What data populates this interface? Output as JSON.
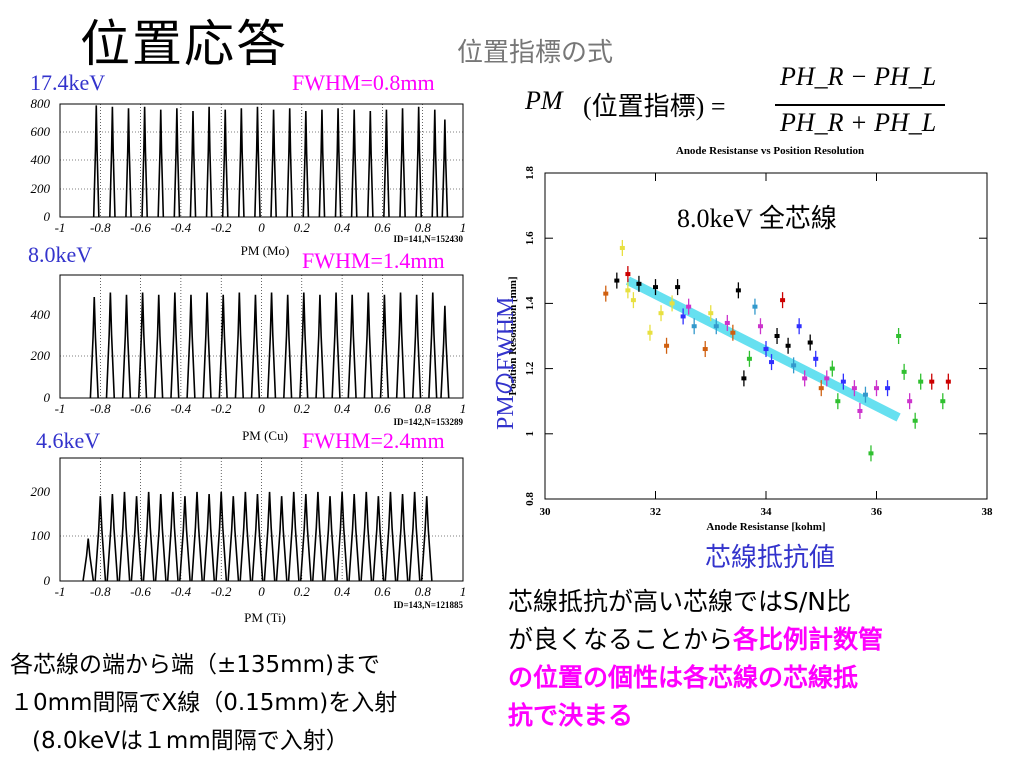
{
  "slide": {
    "title": "位置応答",
    "formula_title": "位置指標の式",
    "formula": {
      "lhs": "PM",
      "lhs_paren": "(位置指標) =",
      "numerator": "PH_R − PH_L",
      "denominator": "PH_R + PH_L"
    },
    "left_note": [
      "各芯線の端から端（±135mm)まで",
      "１0mm間隔でX線（0.15mm)を入射",
      "(8.0keVは１mm間隔で入射）"
    ],
    "right_note": {
      "line1": "芯線抵抗が高い芯線ではS/N比",
      "line2_plain": "が良くなることから",
      "line2_em": "各比例計数管",
      "line3_em": "の位置の個性は各芯線の芯線抵",
      "line4_em": "抗で決まる"
    },
    "pm_fwhm_label": "PMのFWHM",
    "resistance_label": "芯線抵抗値"
  },
  "histograms": [
    {
      "energy": "17.4keV",
      "fwhm": "FWHM=0.8mm",
      "id_text": "ID=141,N=152430",
      "xlabel": "PM (Mo)",
      "yticks": [
        "800",
        "600",
        "400",
        "200",
        "0"
      ],
      "ymax": 800,
      "xticks": [
        "-1",
        "-0.8",
        "-0.6",
        "-0.4",
        "-0.2",
        "0",
        "0.2",
        "0.4",
        "0.6",
        "0.8",
        "1"
      ],
      "peak_positions": [
        -0.82,
        -0.74,
        -0.66,
        -0.58,
        -0.5,
        -0.42,
        -0.34,
        -0.26,
        -0.18,
        -0.1,
        -0.02,
        0.06,
        0.14,
        0.22,
        0.3,
        0.38,
        0.46,
        0.54,
        0.62,
        0.7,
        0.78,
        0.86,
        0.91
      ],
      "peak_heights": [
        790,
        780,
        770,
        780,
        760,
        770,
        750,
        780,
        760,
        770,
        780,
        760,
        770,
        750,
        760,
        770,
        760,
        750,
        760,
        770,
        780,
        760,
        690
      ],
      "peak_width": 0.008
    },
    {
      "energy": "8.0keV",
      "fwhm": "FWHM=1.4mm",
      "id_text": "ID=142,N=153289",
      "xlabel": "PM (Cu)",
      "yticks": [
        "400",
        "200",
        "0"
      ],
      "ymax": 560,
      "xticks": [
        "-1",
        "-0.8",
        "-0.6",
        "-0.4",
        "-0.2",
        "0",
        "0.2",
        "0.4",
        "0.6",
        "0.8",
        "1"
      ],
      "peak_positions": [
        -0.83,
        -0.75,
        -0.67,
        -0.59,
        -0.51,
        -0.43,
        -0.35,
        -0.27,
        -0.19,
        -0.11,
        -0.03,
        0.05,
        0.13,
        0.21,
        0.29,
        0.37,
        0.45,
        0.53,
        0.61,
        0.69,
        0.77,
        0.85,
        0.91
      ],
      "peak_heights": [
        460,
        480,
        470,
        480,
        470,
        480,
        470,
        480,
        470,
        480,
        470,
        480,
        470,
        480,
        470,
        480,
        470,
        480,
        470,
        480,
        470,
        480,
        420
      ],
      "peak_width": 0.012
    },
    {
      "energy": "4.6keV",
      "fwhm": "FWHM=2.4mm",
      "id_text": "ID=143,N=121885",
      "xlabel": "PM (Ti)",
      "yticks": [
        "200",
        "100",
        "0"
      ],
      "ymax": 290,
      "xticks": [
        "-1",
        "-0.8",
        "-0.6",
        "-0.4",
        "-0.2",
        "0",
        "0.2",
        "0.4",
        "0.6",
        "0.8",
        "1"
      ],
      "peak_positions": [
        -0.86,
        -0.8,
        -0.74,
        -0.68,
        -0.62,
        -0.56,
        -0.5,
        -0.44,
        -0.38,
        -0.32,
        -0.26,
        -0.2,
        -0.14,
        -0.08,
        -0.02,
        0.04,
        0.1,
        0.16,
        0.22,
        0.28,
        0.34,
        0.4,
        0.46,
        0.52,
        0.58,
        0.64,
        0.7,
        0.76,
        0.82
      ],
      "peak_heights": [
        100,
        200,
        205,
        210,
        200,
        210,
        205,
        210,
        200,
        210,
        205,
        210,
        200,
        210,
        205,
        210,
        200,
        210,
        205,
        210,
        200,
        210,
        205,
        210,
        200,
        210,
        205,
        210,
        200
      ],
      "peak_width": 0.016
    }
  ],
  "chart_data": {
    "type": "scatter",
    "title": "Anode Resistanse vs Position Resolution",
    "annotation": "8.0keV 全芯線",
    "xlabel": "Anode Resistanse [kohm]",
    "ylabel": "Position Resolution [mm]",
    "xlim": [
      30,
      38
    ],
    "ylim": [
      0.8,
      1.8
    ],
    "xticks": [
      "30",
      "32",
      "34",
      "36",
      "38"
    ],
    "yticks": [
      "0.8",
      "1",
      "1.2",
      "1.4",
      "1.6",
      "1.8"
    ],
    "trend_line": {
      "x": [
        31.5,
        36.4
      ],
      "y": [
        1.47,
        1.05
      ],
      "color": "#66e0f0"
    },
    "points": [
      {
        "x": 31.1,
        "y": 1.43,
        "c": "#d06010"
      },
      {
        "x": 31.3,
        "y": 1.47,
        "c": "#000000"
      },
      {
        "x": 31.4,
        "y": 1.57,
        "c": "#e8e040"
      },
      {
        "x": 31.5,
        "y": 1.44,
        "c": "#e8e040"
      },
      {
        "x": 31.5,
        "y": 1.49,
        "c": "#cc0000"
      },
      {
        "x": 31.6,
        "y": 1.41,
        "c": "#e8e040"
      },
      {
        "x": 31.7,
        "y": 1.46,
        "c": "#000000"
      },
      {
        "x": 31.9,
        "y": 1.31,
        "c": "#e8e040"
      },
      {
        "x": 32.0,
        "y": 1.45,
        "c": "#000000"
      },
      {
        "x": 32.1,
        "y": 1.37,
        "c": "#e8e040"
      },
      {
        "x": 32.2,
        "y": 1.27,
        "c": "#d06010"
      },
      {
        "x": 32.3,
        "y": 1.4,
        "c": "#e8e040"
      },
      {
        "x": 32.4,
        "y": 1.45,
        "c": "#000000"
      },
      {
        "x": 32.5,
        "y": 1.36,
        "c": "#3030ff"
      },
      {
        "x": 32.6,
        "y": 1.39,
        "c": "#cc33cc"
      },
      {
        "x": 32.7,
        "y": 1.33,
        "c": "#3399cc"
      },
      {
        "x": 32.9,
        "y": 1.26,
        "c": "#d06010"
      },
      {
        "x": 33.0,
        "y": 1.37,
        "c": "#e8e040"
      },
      {
        "x": 33.1,
        "y": 1.33,
        "c": "#3399cc"
      },
      {
        "x": 33.3,
        "y": 1.34,
        "c": "#cc33cc"
      },
      {
        "x": 33.4,
        "y": 1.31,
        "c": "#d06010"
      },
      {
        "x": 33.5,
        "y": 1.44,
        "c": "#000000"
      },
      {
        "x": 33.6,
        "y": 1.17,
        "c": "#000000"
      },
      {
        "x": 33.7,
        "y": 1.23,
        "c": "#30c030"
      },
      {
        "x": 33.8,
        "y": 1.39,
        "c": "#3399cc"
      },
      {
        "x": 33.9,
        "y": 1.33,
        "c": "#cc33cc"
      },
      {
        "x": 34.0,
        "y": 1.26,
        "c": "#3030ff"
      },
      {
        "x": 34.1,
        "y": 1.22,
        "c": "#3030ff"
      },
      {
        "x": 34.2,
        "y": 1.3,
        "c": "#000000"
      },
      {
        "x": 34.3,
        "y": 1.41,
        "c": "#cc0000"
      },
      {
        "x": 34.4,
        "y": 1.27,
        "c": "#000000"
      },
      {
        "x": 34.5,
        "y": 1.21,
        "c": "#3399cc"
      },
      {
        "x": 34.6,
        "y": 1.33,
        "c": "#3030ff"
      },
      {
        "x": 34.7,
        "y": 1.17,
        "c": "#cc33cc"
      },
      {
        "x": 34.8,
        "y": 1.28,
        "c": "#000000"
      },
      {
        "x": 34.9,
        "y": 1.23,
        "c": "#3030ff"
      },
      {
        "x": 35.0,
        "y": 1.14,
        "c": "#d06010"
      },
      {
        "x": 35.1,
        "y": 1.17,
        "c": "#cc33cc"
      },
      {
        "x": 35.2,
        "y": 1.2,
        "c": "#30c030"
      },
      {
        "x": 35.3,
        "y": 1.1,
        "c": "#30c030"
      },
      {
        "x": 35.4,
        "y": 1.16,
        "c": "#3030ff"
      },
      {
        "x": 35.6,
        "y": 1.14,
        "c": "#cc33cc"
      },
      {
        "x": 35.7,
        "y": 1.07,
        "c": "#cc33cc"
      },
      {
        "x": 35.8,
        "y": 1.12,
        "c": "#3399cc"
      },
      {
        "x": 35.9,
        "y": 0.94,
        "c": "#30c030"
      },
      {
        "x": 36.0,
        "y": 1.14,
        "c": "#cc33cc"
      },
      {
        "x": 36.2,
        "y": 1.14,
        "c": "#3030ff"
      },
      {
        "x": 36.4,
        "y": 1.3,
        "c": "#30c030"
      },
      {
        "x": 36.5,
        "y": 1.19,
        "c": "#30c030"
      },
      {
        "x": 36.6,
        "y": 1.1,
        "c": "#cc33cc"
      },
      {
        "x": 36.7,
        "y": 1.04,
        "c": "#30c030"
      },
      {
        "x": 36.8,
        "y": 1.16,
        "c": "#30c030"
      },
      {
        "x": 37.0,
        "y": 1.16,
        "c": "#cc0000"
      },
      {
        "x": 37.2,
        "y": 1.1,
        "c": "#30c030"
      },
      {
        "x": 37.3,
        "y": 1.16,
        "c": "#cc0000"
      }
    ]
  }
}
